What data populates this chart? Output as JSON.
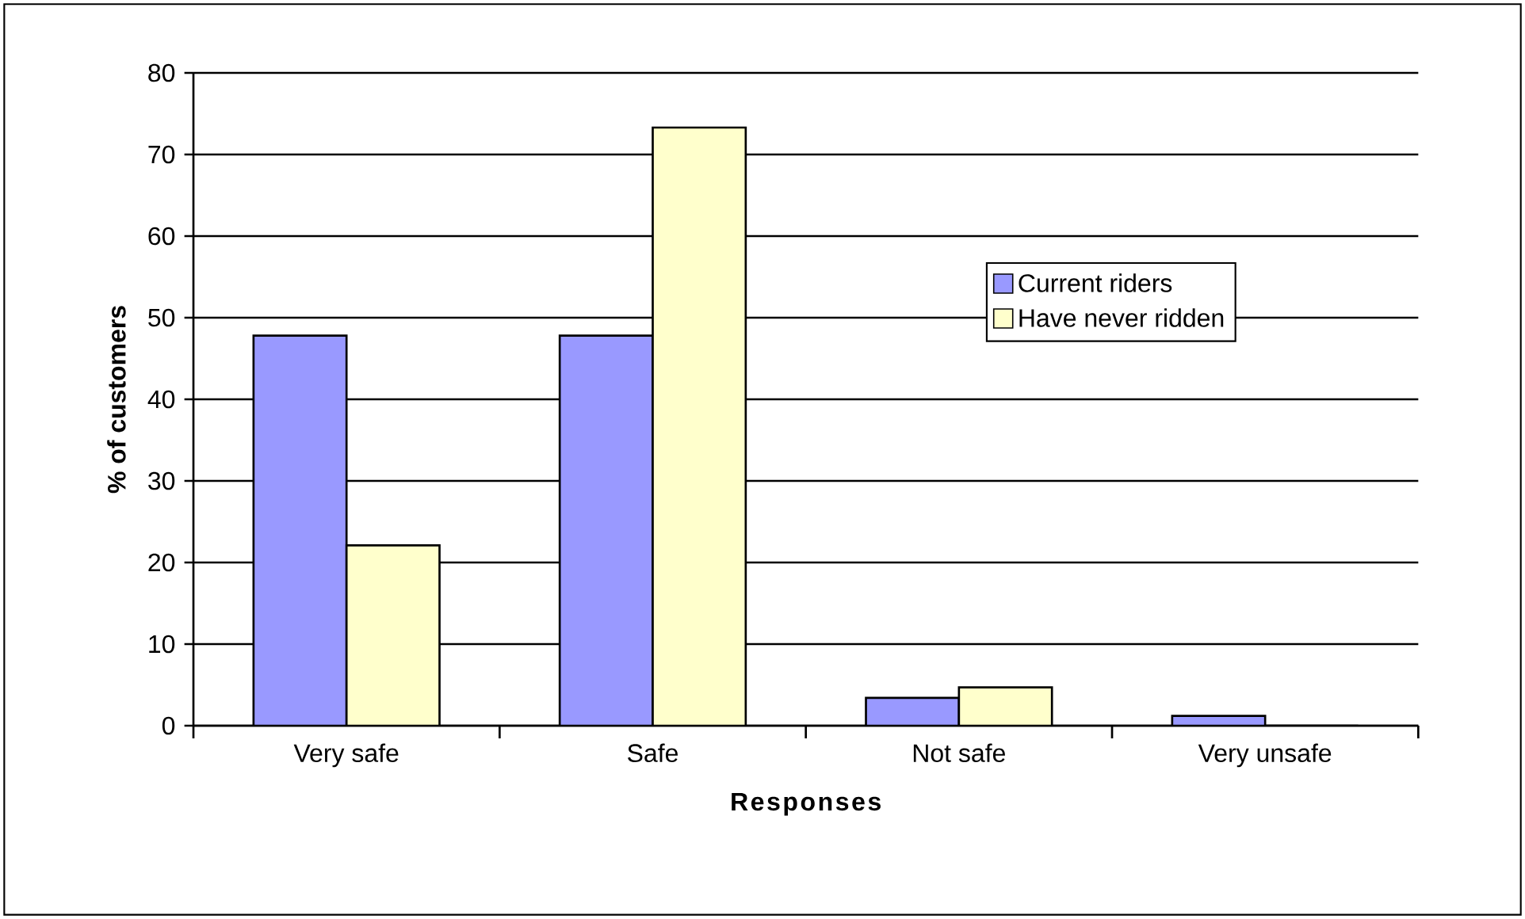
{
  "chart_data": {
    "type": "bar",
    "xlabel": "Responses",
    "ylabel": "% of customers",
    "categories": [
      "Very safe",
      "Safe",
      "Not safe",
      "Very unsafe"
    ],
    "series": [
      {
        "name": "Current riders",
        "color": "#9999ff",
        "values": [
          47.8,
          47.8,
          3.4,
          1.2
        ]
      },
      {
        "name": "Have never ridden",
        "color": "#ffffcc",
        "values": [
          22.1,
          73.3,
          4.7,
          0
        ]
      }
    ],
    "ylim": [
      0,
      80
    ],
    "yticks": [
      0,
      10,
      20,
      30,
      40,
      50,
      60,
      70,
      80
    ],
    "grid": "y",
    "legend": "right"
  }
}
